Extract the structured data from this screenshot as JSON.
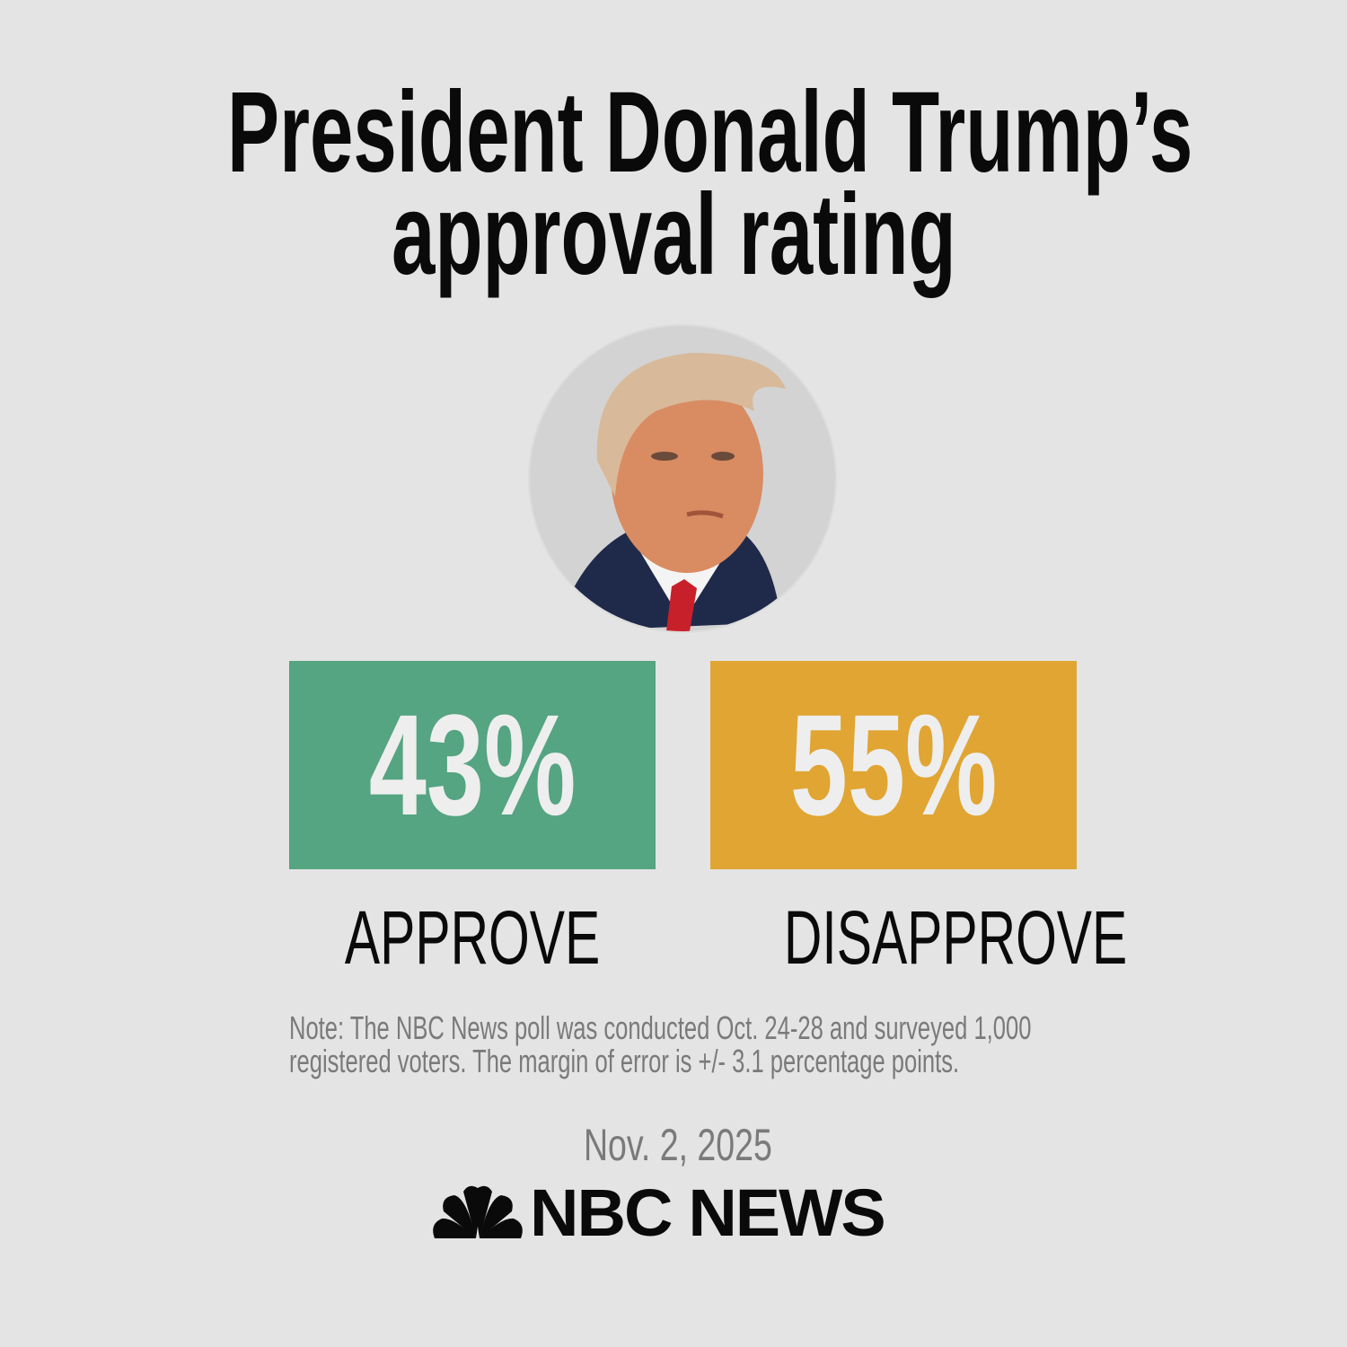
{
  "title": {
    "line1": "President Donald Trump’s",
    "line2": "approval rating"
  },
  "portrait": {
    "alt": "Donald Trump"
  },
  "results": [
    {
      "value": "43%",
      "label": "APPROVE",
      "color": "#55a482"
    },
    {
      "value": "55%",
      "label": "DISAPPROVE",
      "color": "#e0a532"
    }
  ],
  "note": "Note: The NBC News poll was conducted Oct. 24-28 and surveyed 1,000 registered voters. The margin of error is +/- 3.1 percentage points.",
  "date": "Nov. 2, 2025",
  "logo": {
    "text": "NBC NEWS",
    "icon": "peacock-icon"
  }
}
